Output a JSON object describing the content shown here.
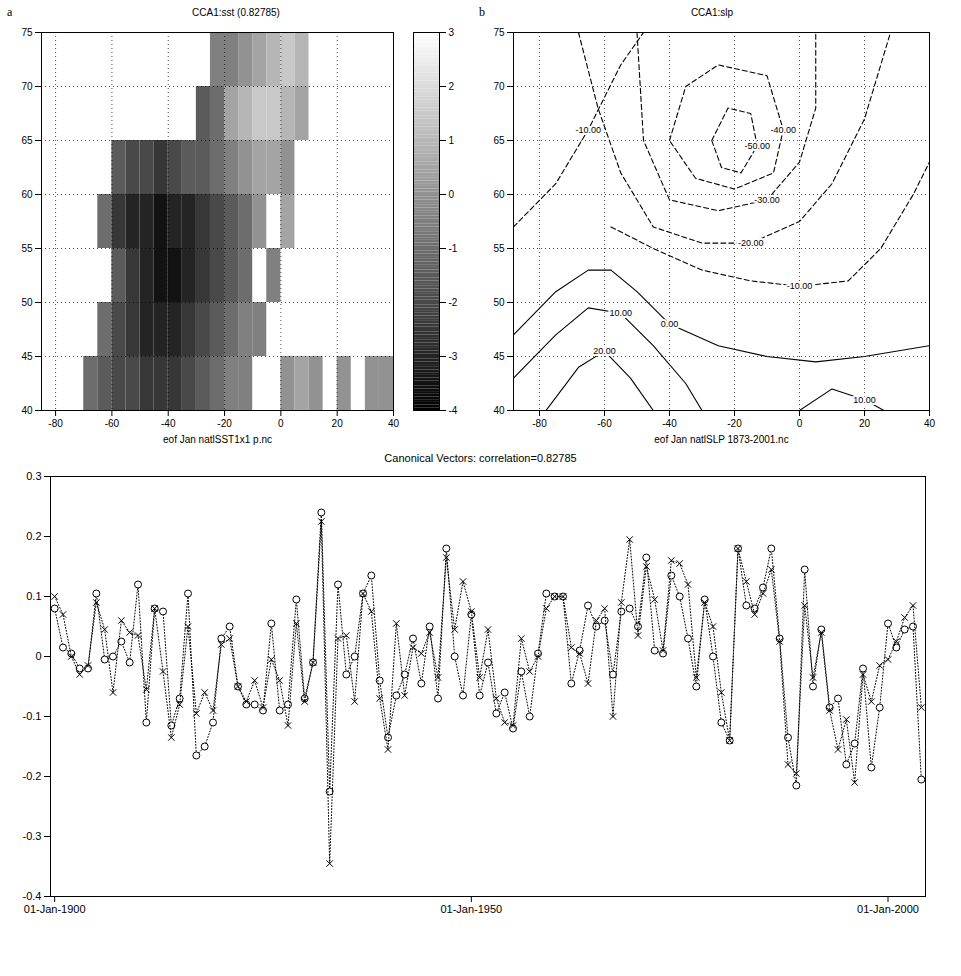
{
  "chart_data": [
    {
      "type": "heatmap",
      "panel": "a",
      "title": "CCA1:sst (0.82785)",
      "x_label": "eof Jan natlSST1x1 p.nc",
      "xlim": [
        -85,
        40
      ],
      "xticks": [
        -80,
        -60,
        -40,
        -20,
        0,
        20,
        40
      ],
      "ylim": [
        40,
        75
      ],
      "yticks": [
        40,
        45,
        50,
        55,
        60,
        65,
        70,
        75
      ],
      "grid": true,
      "x": [
        -82.5,
        -77.5,
        -72.5,
        -67.5,
        -62.5,
        -57.5,
        -52.5,
        -47.5,
        -42.5,
        -37.5,
        -32.5,
        -27.5,
        -22.5,
        -17.5,
        -12.5,
        -7.5,
        -2.5,
        2.5,
        7.5,
        12.5,
        17.5,
        22.5,
        27.5,
        32.5,
        37.5
      ],
      "y": [
        72.5,
        67.5,
        62.5,
        57.5,
        52.5,
        47.5,
        42.5
      ],
      "values": [
        [
          null,
          null,
          null,
          null,
          null,
          null,
          null,
          null,
          null,
          null,
          null,
          null,
          -0.5,
          -0.5,
          0,
          0.5,
          1,
          1.5,
          1,
          null,
          null,
          null,
          null,
          null,
          null
        ],
        [
          null,
          null,
          null,
          null,
          null,
          null,
          null,
          null,
          null,
          null,
          null,
          -1.5,
          -1,
          0.5,
          1,
          1.5,
          1.5,
          1,
          0.5,
          null,
          null,
          null,
          null,
          null,
          null
        ],
        [
          null,
          null,
          null,
          null,
          null,
          -1.5,
          -2,
          -2,
          -2.5,
          -2,
          -1.5,
          -1.5,
          -1,
          -0.5,
          0,
          0.5,
          0.5,
          0,
          null,
          null,
          null,
          null,
          null,
          null,
          null
        ],
        [
          null,
          null,
          null,
          null,
          -1,
          -2.5,
          -3,
          -3,
          -3.5,
          -3,
          -3,
          -2.5,
          -2,
          -1.5,
          -1,
          0,
          null,
          0.5,
          null,
          null,
          null,
          null,
          null,
          null,
          null
        ],
        [
          null,
          null,
          null,
          null,
          null,
          -1.5,
          -2.5,
          -3,
          -3.5,
          -3.5,
          -3,
          -2.5,
          -2,
          -1.5,
          -1,
          null,
          -0.5,
          null,
          null,
          null,
          null,
          null,
          null,
          null,
          null
        ],
        [
          null,
          null,
          null,
          null,
          -1,
          -2,
          -2.5,
          -3,
          -3,
          -3,
          -2.5,
          -2,
          -1.5,
          -1,
          -0.5,
          -0.5,
          null,
          null,
          null,
          null,
          null,
          null,
          null,
          null,
          null
        ],
        [
          null,
          null,
          null,
          -1,
          -1.5,
          -2,
          -2,
          -2.5,
          -2.5,
          -2.5,
          -2,
          -1.5,
          -1,
          -0.5,
          -0.5,
          null,
          null,
          0,
          0.5,
          0,
          null,
          0,
          null,
          0,
          0
        ]
      ],
      "colorbar": {
        "range": [
          -4,
          3
        ],
        "ticks": [
          -4,
          -3,
          -2,
          -1,
          0,
          1,
          2,
          3
        ]
      }
    },
    {
      "type": "contour",
      "panel": "b",
      "title": "CCA1:slp",
      "x_label": "eof Jan natlSLP 1873-2001.nc",
      "xlim": [
        -88,
        40
      ],
      "xticks": [
        -80,
        -60,
        -40,
        -20,
        0,
        20,
        40
      ],
      "ylim": [
        40,
        75
      ],
      "yticks": [
        40,
        45,
        50,
        55,
        60,
        65,
        70,
        75
      ],
      "grid": true,
      "contours": [
        {
          "level": -50,
          "label": "-50.00",
          "lon": [
            -27,
            -22,
            -15,
            -13,
            -18,
            -24,
            -27
          ],
          "lat": [
            65,
            68,
            67.5,
            64.5,
            62,
            62.5,
            65
          ]
        },
        {
          "level": -40,
          "label": "-40.00",
          "lon": [
            -40,
            -35,
            -25,
            -10,
            -5,
            -8,
            -20,
            -32,
            -40
          ],
          "lat": [
            65,
            70,
            72,
            71,
            66,
            62,
            60.5,
            61.5,
            65
          ]
        },
        {
          "level": -30,
          "label": "-30.00",
          "lon": [
            -50,
            -48,
            -40,
            -25,
            -10,
            0,
            5,
            5
          ],
          "lat": [
            75,
            65,
            59.5,
            58.5,
            59.5,
            63,
            68,
            75
          ]
        },
        {
          "level": -20,
          "label": "-20.00",
          "lon": [
            -68,
            -62,
            -55,
            -45,
            -30,
            -15,
            0,
            10,
            20,
            28
          ],
          "lat": [
            75,
            68,
            62,
            57,
            55.5,
            55.5,
            57.5,
            61,
            67,
            75
          ]
        },
        {
          "level": -10,
          "label": "-10.00",
          "lon": [
            -88,
            -75,
            -65,
            -55,
            -48
          ],
          "lat": [
            57,
            61,
            66,
            72,
            75
          ]
        },
        {
          "level": -10,
          "label": "-10.00",
          "lon": [
            -58,
            -45,
            -30,
            -15,
            0,
            15,
            25,
            35,
            40
          ],
          "lat": [
            57,
            55,
            53,
            52,
            51.5,
            52,
            55,
            60,
            63
          ]
        },
        {
          "level": 0,
          "label": "0.00",
          "lon": [
            -88,
            -75,
            -65,
            -58,
            -50,
            -40,
            -25,
            -10,
            5,
            20,
            40
          ],
          "lat": [
            47,
            51,
            53,
            53,
            51,
            48,
            46,
            45,
            44.5,
            45,
            46
          ]
        },
        {
          "level": 10,
          "label": "10.00",
          "lon": [
            -88,
            -75,
            -65,
            -55,
            -45,
            -35,
            -30
          ],
          "lat": [
            43,
            47,
            49.5,
            49,
            46,
            42.5,
            40
          ]
        },
        {
          "level": 10,
          "label": "10.00",
          "lon": [
            0,
            10,
            20,
            26
          ],
          "lat": [
            40,
            42,
            41,
            40
          ]
        },
        {
          "level": 20,
          "label": "20.00",
          "lon": [
            -78,
            -68,
            -60,
            -52,
            -45
          ],
          "lat": [
            40,
            44,
            45.5,
            43,
            40
          ]
        }
      ]
    },
    {
      "type": "line",
      "title": "Canonical Vectors: correlation=0.82785",
      "xlim": [
        1899.5,
        2004.5
      ],
      "xticks": [
        {
          "value": 1900,
          "label": "01-Jan-1900"
        },
        {
          "value": 1950,
          "label": "01-Jan-1950"
        },
        {
          "value": 2000,
          "label": "01-Jan-2000"
        }
      ],
      "ylim": [
        -0.4,
        0.3
      ],
      "yticks": [
        -0.4,
        -0.3,
        -0.2,
        -0.1,
        0,
        0.1,
        0.2,
        0.3
      ],
      "x": [
        1900,
        1901,
        1902,
        1903,
        1904,
        1905,
        1906,
        1907,
        1908,
        1909,
        1910,
        1911,
        1912,
        1913,
        1914,
        1915,
        1916,
        1917,
        1918,
        1919,
        1920,
        1921,
        1922,
        1923,
        1924,
        1925,
        1926,
        1927,
        1928,
        1929,
        1930,
        1931,
        1932,
        1933,
        1934,
        1935,
        1936,
        1937,
        1938,
        1939,
        1940,
        1941,
        1942,
        1943,
        1944,
        1945,
        1946,
        1947,
        1948,
        1949,
        1950,
        1951,
        1952,
        1953,
        1954,
        1955,
        1956,
        1957,
        1958,
        1959,
        1960,
        1961,
        1962,
        1963,
        1964,
        1965,
        1966,
        1967,
        1968,
        1969,
        1970,
        1971,
        1972,
        1973,
        1974,
        1975,
        1976,
        1977,
        1978,
        1979,
        1980,
        1981,
        1982,
        1983,
        1984,
        1985,
        1986,
        1987,
        1988,
        1989,
        1990,
        1991,
        1992,
        1993,
        1994,
        1995,
        1996,
        1997,
        1998,
        1999,
        2000,
        2001,
        2002,
        2003,
        2004
      ],
      "series": [
        {
          "color": "#000000",
          "marker": "circle",
          "line_style": "dotted",
          "values": [
            0.08,
            0.015,
            0.005,
            -0.02,
            -0.02,
            0.105,
            -0.005,
            0.0,
            0.025,
            -0.01,
            0.12,
            -0.11,
            0.08,
            0.075,
            -0.115,
            -0.07,
            0.105,
            -0.165,
            -0.15,
            -0.11,
            0.03,
            0.05,
            -0.05,
            -0.08,
            -0.08,
            -0.09,
            0.055,
            -0.09,
            -0.08,
            0.095,
            -0.07,
            -0.01,
            0.24,
            -0.225,
            0.12,
            -0.03,
            0.0,
            0.105,
            0.135,
            -0.04,
            -0.135,
            -0.065,
            -0.03,
            0.03,
            -0.045,
            0.05,
            -0.07,
            0.18,
            0.0,
            -0.065,
            0.07,
            -0.065,
            -0.01,
            -0.095,
            -0.06,
            -0.12,
            -0.025,
            -0.1,
            0.005,
            0.105,
            0.1,
            0.1,
            -0.045,
            0.01,
            0.085,
            0.05,
            0.06,
            -0.03,
            0.075,
            0.08,
            0.05,
            0.165,
            0.01,
            0.005,
            0.135,
            0.1,
            0.03,
            -0.05,
            0.095,
            0.0,
            -0.11,
            -0.14,
            0.18,
            0.085,
            0.08,
            0.115,
            0.18,
            0.03,
            -0.135,
            -0.215,
            0.145,
            -0.05,
            0.045,
            -0.085,
            -0.07,
            -0.18,
            -0.145,
            -0.02,
            -0.185,
            -0.085,
            0.055,
            0.015,
            0.045,
            0.05,
            -0.205
          ]
        },
        {
          "color": "#000000",
          "marker": "x",
          "line_style": "dotted",
          "values": [
            0.1,
            0.07,
            0.0,
            -0.03,
            -0.015,
            0.09,
            0.045,
            -0.06,
            0.06,
            0.04,
            0.035,
            -0.055,
            0.08,
            -0.025,
            -0.135,
            -0.08,
            0.05,
            -0.095,
            -0.06,
            -0.09,
            0.02,
            0.03,
            -0.05,
            -0.075,
            -0.04,
            -0.085,
            -0.005,
            -0.04,
            -0.115,
            0.055,
            -0.075,
            -0.01,
            0.225,
            -0.345,
            0.03,
            0.035,
            -0.075,
            0.105,
            0.075,
            -0.07,
            -0.155,
            0.055,
            -0.065,
            0.015,
            0.005,
            0.04,
            -0.035,
            0.165,
            0.045,
            0.125,
            0.075,
            -0.035,
            0.045,
            -0.07,
            -0.11,
            -0.115,
            0.03,
            -0.025,
            0.0,
            0.08,
            0.1,
            0.1,
            0.015,
            0.005,
            -0.045,
            0.06,
            0.08,
            -0.1,
            0.09,
            0.195,
            0.035,
            0.15,
            0.095,
            0.01,
            0.16,
            0.155,
            0.12,
            -0.035,
            0.09,
            0.05,
            -0.06,
            -0.14,
            0.18,
            0.125,
            0.07,
            0.105,
            0.145,
            0.025,
            -0.18,
            -0.195,
            0.085,
            -0.035,
            0.04,
            -0.09,
            -0.155,
            -0.105,
            -0.21,
            -0.03,
            -0.075,
            -0.015,
            -0.005,
            0.025,
            0.065,
            0.085,
            -0.085
          ]
        }
      ]
    }
  ]
}
